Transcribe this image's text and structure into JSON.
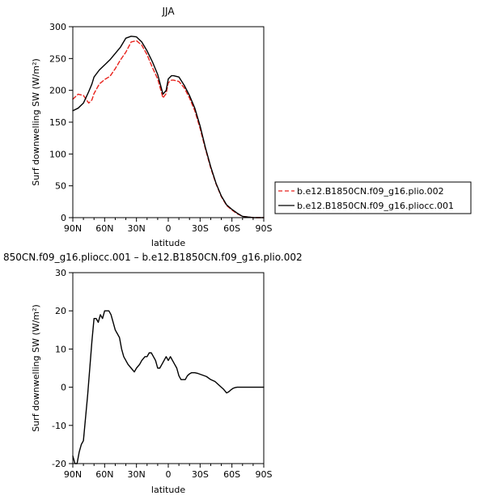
{
  "chart_data": [
    {
      "type": "line",
      "title": "JJA",
      "xlabel": "latitude",
      "ylabel": "Surf downwelling SW (W/m²)",
      "x_tick_labels": [
        "90N",
        "60N",
        "30N",
        "0",
        "30S",
        "60S",
        "90S"
      ],
      "xlim": [
        90,
        -90
      ],
      "ylim": [
        0,
        300
      ],
      "y_ticks": [
        0,
        50,
        100,
        150,
        200,
        250,
        300
      ],
      "legend_position": "right",
      "grid": false,
      "series": [
        {
          "name": "b.e12.B1850CN.f09_g16.plio.002",
          "color": "#e8221c",
          "dash": "dashed",
          "x": [
            90,
            85,
            80,
            75,
            72,
            70,
            65,
            60,
            55,
            50,
            45,
            40,
            35,
            30,
            25,
            20,
            15,
            10,
            5,
            2,
            0,
            -3,
            -5,
            -10,
            -15,
            -20,
            -25,
            -30,
            -35,
            -40,
            -45,
            -50,
            -55,
            -60,
            -65,
            -70,
            -75,
            -80,
            -85,
            -90
          ],
          "y": [
            186,
            194,
            192,
            180,
            185,
            195,
            210,
            217,
            222,
            234,
            248,
            260,
            276,
            278,
            271,
            256,
            236,
            218,
            188,
            195,
            212,
            216,
            216,
            214,
            204,
            188,
            168,
            140,
            108,
            78,
            53,
            33,
            19,
            12,
            6,
            2,
            1,
            0,
            0,
            0
          ]
        },
        {
          "name": "b.e12.B1850CN.f09_g16.pliocc.001",
          "color": "#000000",
          "dash": "solid",
          "x": [
            90,
            85,
            80,
            75,
            72,
            70,
            65,
            60,
            55,
            50,
            45,
            40,
            35,
            30,
            25,
            20,
            15,
            10,
            5,
            2,
            0,
            -3,
            -5,
            -10,
            -15,
            -20,
            -25,
            -30,
            -35,
            -40,
            -45,
            -50,
            -55,
            -60,
            -65,
            -70,
            -75,
            -80,
            -85,
            -90
          ],
          "y": [
            168,
            172,
            180,
            198,
            210,
            221,
            232,
            240,
            248,
            258,
            268,
            282,
            285,
            284,
            276,
            262,
            245,
            225,
            194,
            200,
            218,
            223,
            223,
            221,
            208,
            192,
            172,
            144,
            110,
            80,
            54,
            34,
            20,
            13,
            7,
            2,
            1,
            0,
            0,
            0
          ]
        }
      ]
    },
    {
      "type": "line",
      "title": "850CN.f09_g16.pliocc.001 – b.e12.B1850CN.f09_g16.plio.002",
      "xlabel": "latitude",
      "ylabel": "Surf downwelling SW (W/m²)",
      "x_tick_labels": [
        "90N",
        "60N",
        "30N",
        "0",
        "30S",
        "60S",
        "90S"
      ],
      "xlim": [
        90,
        -90
      ],
      "ylim": [
        -20,
        30
      ],
      "y_ticks": [
        -20,
        -10,
        0,
        10,
        20,
        30
      ],
      "grid": false,
      "series": [
        {
          "color": "#000000",
          "dash": "solid",
          "x": [
            90,
            88,
            86,
            84,
            82,
            80,
            78,
            76,
            74,
            72,
            70,
            68,
            66,
            64,
            62,
            60,
            58,
            56,
            54,
            52,
            50,
            48,
            46,
            44,
            42,
            40,
            38,
            35,
            32,
            30,
            27,
            25,
            22,
            20,
            18,
            16,
            14,
            12,
            10,
            8,
            6,
            4,
            2,
            0,
            -2,
            -4,
            -6,
            -8,
            -10,
            -12,
            -14,
            -16,
            -18,
            -20,
            -22,
            -25,
            -28,
            -32,
            -36,
            -40,
            -44,
            -48,
            -52,
            -55,
            -57,
            -59,
            -61,
            -63,
            -65,
            -70,
            -75,
            -80,
            -85,
            -90
          ],
          "y": [
            -18,
            -20,
            -20,
            -17,
            -15,
            -14,
            -8,
            -2,
            5,
            12,
            18,
            18,
            17,
            19,
            18,
            20,
            20,
            20,
            19,
            17,
            15,
            14,
            13,
            10,
            8,
            7,
            6,
            5,
            4,
            5,
            6,
            7,
            8,
            8,
            9,
            9,
            8,
            7,
            5,
            5,
            6,
            7,
            8,
            7,
            8,
            7,
            6,
            5,
            3,
            2,
            2,
            2,
            3,
            3.5,
            3.8,
            3.8,
            3.6,
            3.2,
            2.8,
            2,
            1.5,
            0.5,
            -0.5,
            -1.5,
            -1.2,
            -0.7,
            -0.3,
            -0.1,
            0,
            0,
            0,
            0,
            0,
            0
          ]
        }
      ]
    }
  ]
}
